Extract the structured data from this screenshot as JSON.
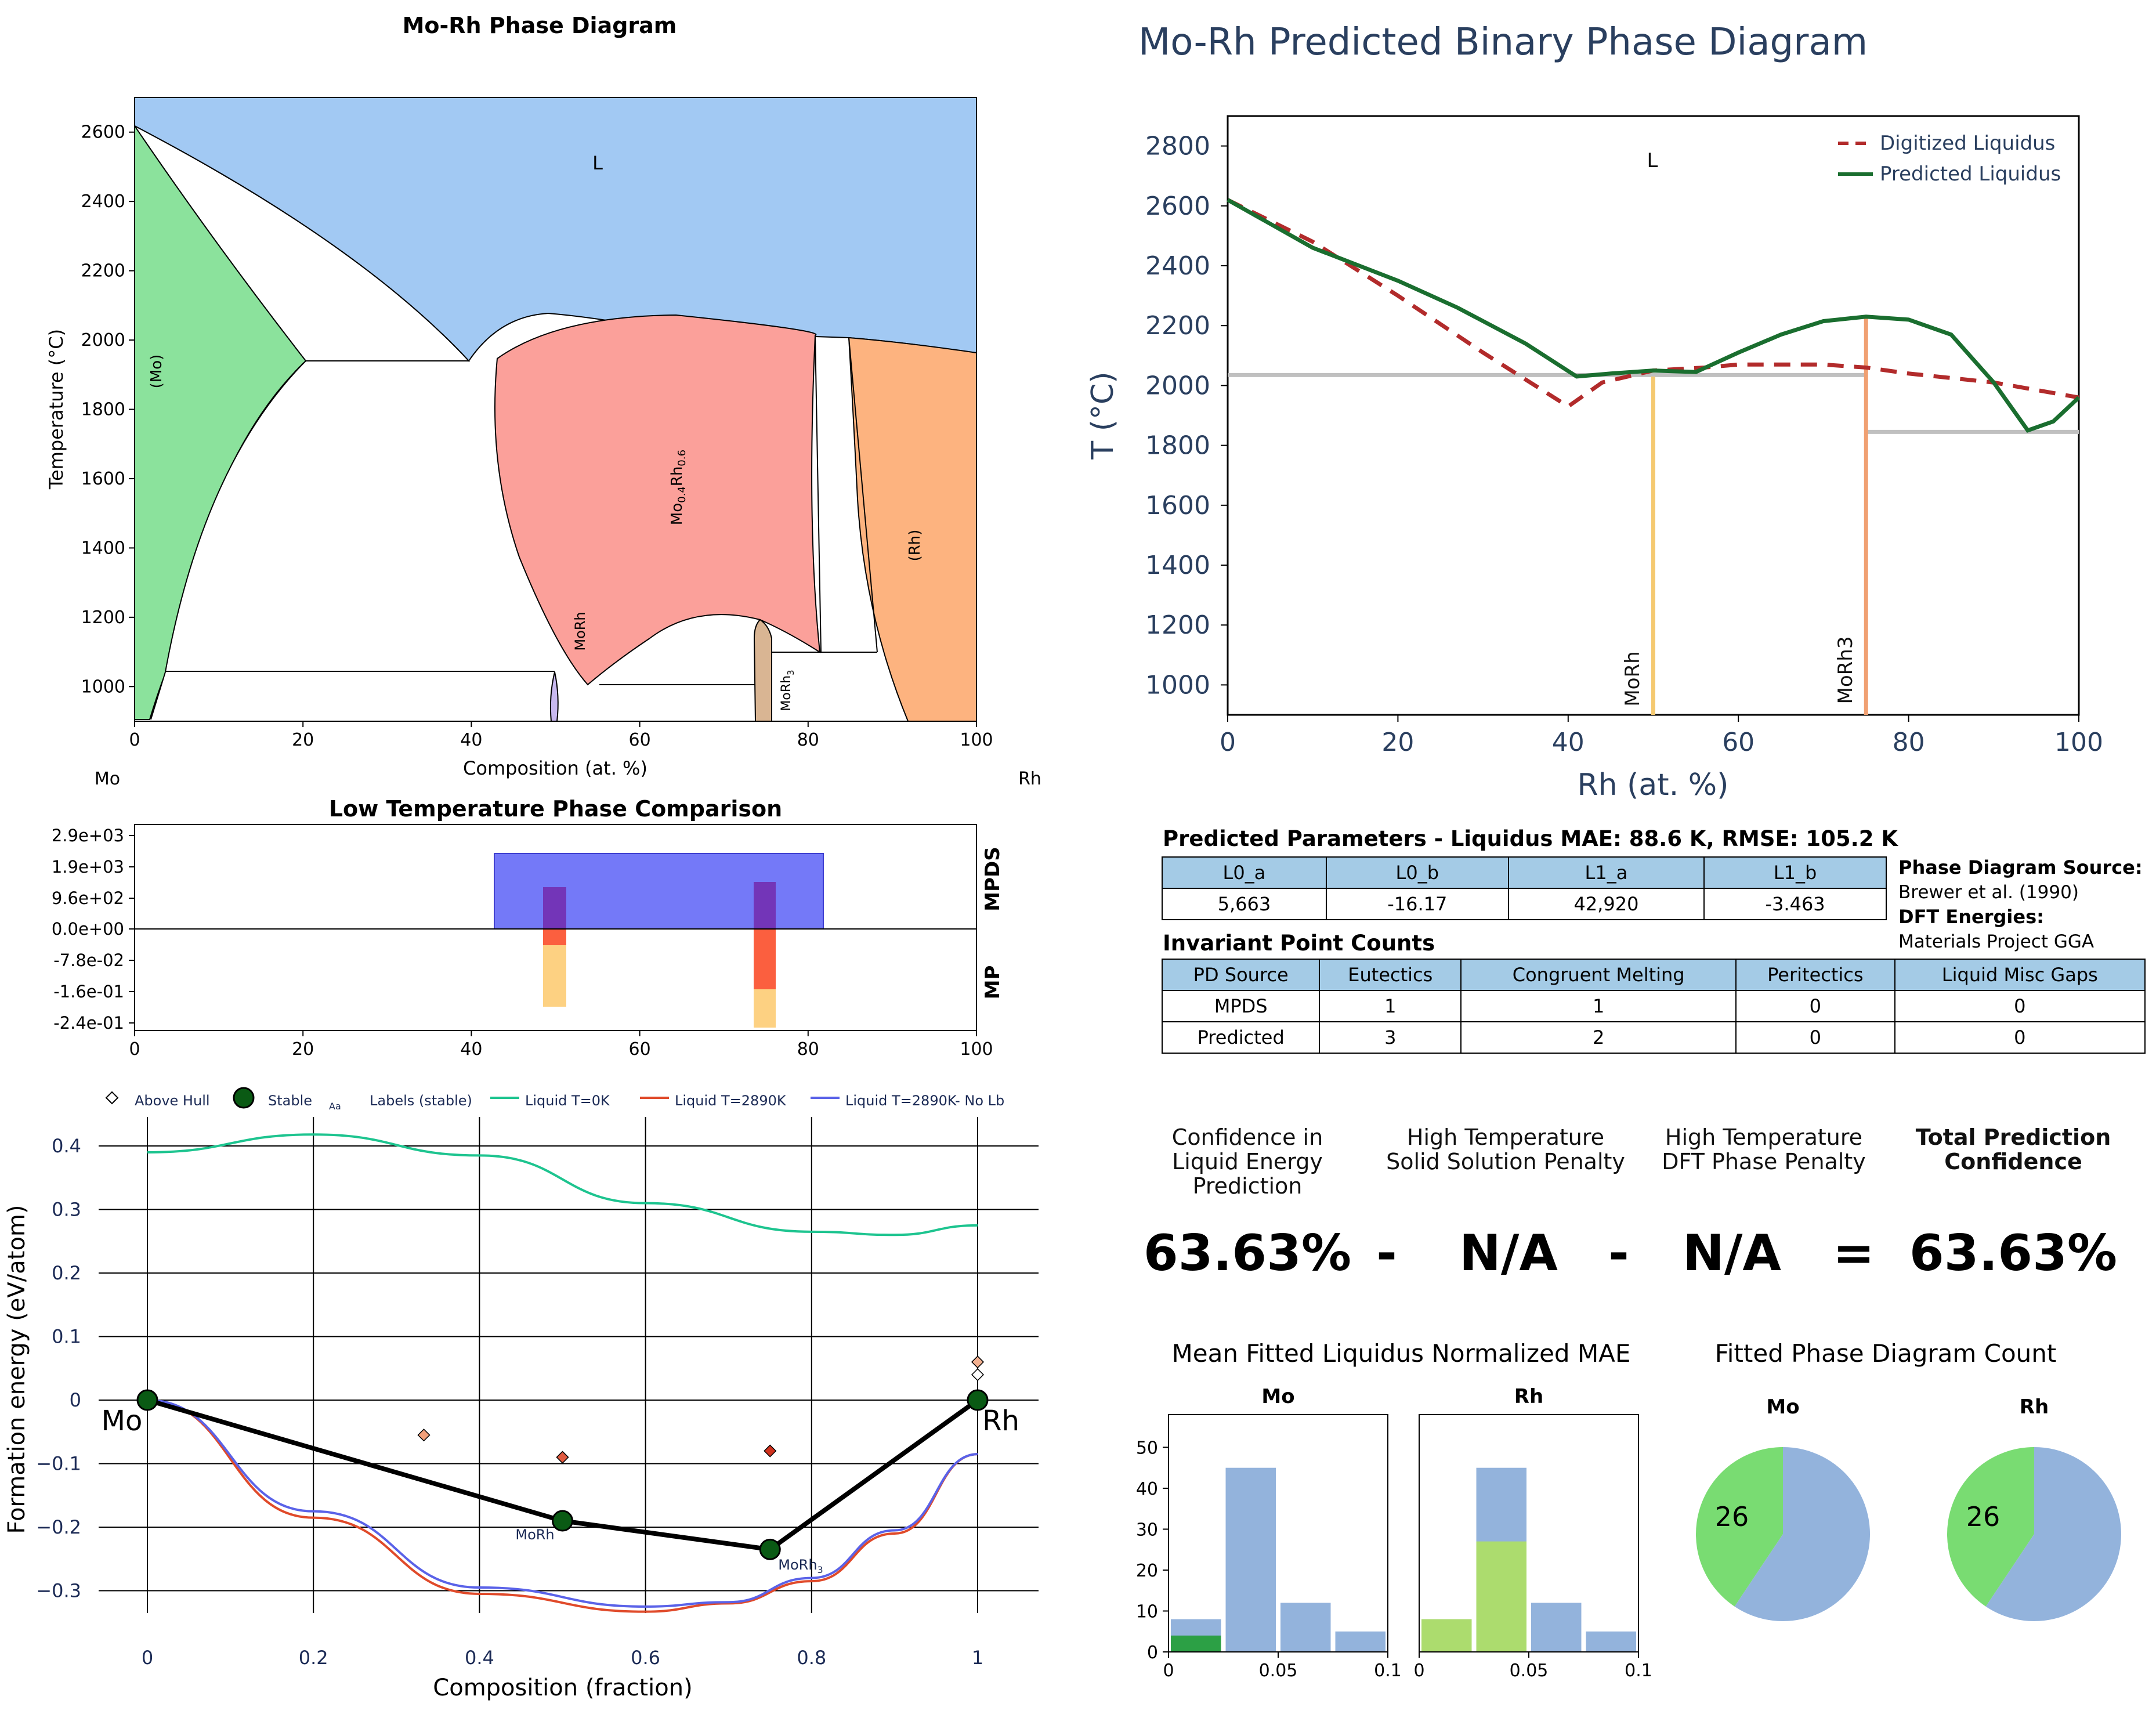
{
  "panel_pd": {
    "title": "Mo-Rh Phase Diagram",
    "xlabel": "Composition (at. %)",
    "ylabel": "Temperature ($^\\circ$C)",
    "ylabel_text": "Temperature (°C)",
    "left_el": "Mo",
    "right_el": "Rh",
    "xticks": [
      "0",
      "20",
      "40",
      "60",
      "80",
      "100"
    ],
    "yticks": [
      "1000",
      "1200",
      "1400",
      "1600",
      "1800",
      "2000",
      "2200",
      "2400",
      "2600"
    ],
    "labels": {
      "L": "L",
      "Mo": "(Mo)",
      "MoRhmid": "Mo0.4Rh0.6",
      "Rh": "(Rh)",
      "MoRh": "MoRh",
      "MoRh3": "MoRh3"
    }
  },
  "panel_pred": {
    "title": "Mo-Rh Predicted Binary Phase Diagram",
    "xlabel": "Rh (at. %)",
    "ylabel": "T (°C)",
    "xticks": [
      "0",
      "20",
      "40",
      "60",
      "80",
      "100"
    ],
    "yticks": [
      "1000",
      "1200",
      "1400",
      "1600",
      "1800",
      "2000",
      "2200",
      "2400",
      "2600",
      "2800"
    ],
    "L": "L",
    "legend": [
      "Digitized Liquidus",
      "Predicted Liquidus"
    ],
    "compound_labels": [
      "MoRh",
      "MoRh3"
    ]
  },
  "panel_cmp": {
    "title": "Low Temperature Phase Comparison",
    "yticks": [
      "2.9e+03",
      "1.9e+03",
      "9.6e+02",
      "0.0e+00",
      "-7.8e-02",
      "-1.6e-01",
      "-2.4e-01"
    ],
    "xticks": [
      "0",
      "20",
      "40",
      "60",
      "80",
      "100"
    ],
    "right_top": "MPDS",
    "right_bottom": "MP"
  },
  "panel_hull": {
    "legend": [
      "Above Hull",
      "Stable",
      "Aa",
      "Labels (stable)",
      "Liquid T=0K",
      "Liquid T=2890K",
      "Liquid T=2890K- No Lb"
    ],
    "xlabel": "Composition (fraction)",
    "ylabel": "Formation energy (eV/atom)",
    "xticks": [
      "0",
      "0.2",
      "0.4",
      "0.6",
      "0.8",
      "1"
    ],
    "yticks": [
      "0.4",
      "0.3",
      "0.2",
      "0.1",
      "0",
      "−0.1",
      "−0.2",
      "−0.3"
    ],
    "end_left": "Mo",
    "end_right": "Rh",
    "pt_labels": [
      "MoRh",
      "MoRh3"
    ]
  },
  "params": {
    "title": "Predicted Parameters - Liquidus MAE: 88.6 K, RMSE: 105.2 K",
    "headers": [
      "L0_a",
      "L0_b",
      "L1_a",
      "L1_b"
    ],
    "values": [
      "5,663",
      "-16.17",
      "42,920",
      "-3.463"
    ],
    "source_h": "Phase Diagram Source:",
    "source_v": "Brewer et al. (1990)",
    "dft_h": "DFT Energies:",
    "dft_v": "Materials Project GGA"
  },
  "invariant": {
    "title": "Invariant Point Counts",
    "headers": [
      "PD Source",
      "Eutectics",
      "Congruent Melting",
      "Peritectics",
      "Liquid Misc Gaps"
    ],
    "rows": [
      [
        "MPDS",
        "1",
        "1",
        "0",
        "0"
      ],
      [
        "Predicted",
        "3",
        "2",
        "0",
        "0"
      ]
    ]
  },
  "confidence": {
    "h1": "Confidence in Liquid Energy Prediction",
    "h2": "High Temperature Solid Solution Penalty",
    "h3": "High Temperature DFT Phase Penalty",
    "h4": "Total Prediction Confidence",
    "v1": "63.63%",
    "op1": "-",
    "v2": "N/A",
    "op2": "-",
    "v3": "N/A",
    "op3": "=",
    "v4": "63.63%"
  },
  "mae": {
    "title": "Mean Fitted Liquidus Normalized MAE",
    "sub_mo": "Mo",
    "sub_rh": "Rh",
    "yticks": [
      "0",
      "10",
      "20",
      "30",
      "40",
      "50"
    ],
    "xticks": [
      "0",
      "0.05",
      "0.1"
    ]
  },
  "count": {
    "title": "Fitted Phase Diagram Count",
    "sub_mo": "Mo",
    "sub_rh": "Rh",
    "mo_label": "26",
    "rh_label": "26"
  },
  "colors": {
    "liquid": "#a2c9f3",
    "mo_phase": "#8be29c",
    "mid_phase": "#fba09a",
    "rh_phase": "#fdb37f",
    "morh": "#c8b8ef",
    "morh3": "#d9b593",
    "pred_green": "#1a6e2f",
    "digit_red": "#b22b2b",
    "hull_green": "#0a5a14",
    "mpds_blue": "#7479f8",
    "pie_blue": "#93b3dc",
    "pie_green": "#79dc72"
  },
  "chart_data": [
    {
      "type": "area",
      "title": "Mo-Rh Phase Diagram",
      "xlabel": "Composition (at. %)",
      "ylabel": "Temperature (°C)",
      "xlim": [
        0,
        100
      ],
      "ylim": [
        900,
        2700
      ],
      "phases": [
        "L",
        "(Mo)",
        "Mo0.4Rh0.6",
        "(Rh)",
        "MoRh",
        "MoRh3"
      ]
    },
    {
      "type": "line",
      "title": "Mo-Rh Predicted Binary Phase Diagram",
      "xlabel": "Rh (at. %)",
      "ylabel": "T (°C)",
      "xlim": [
        0,
        100
      ],
      "ylim": [
        900,
        2900
      ],
      "series": [
        {
          "name": "Digitized Liquidus",
          "x": [
            0,
            10,
            20,
            30,
            40,
            44,
            50,
            56,
            60,
            70,
            75,
            80,
            90,
            100
          ],
          "y": [
            2620,
            2480,
            2300,
            2110,
            1930,
            2010,
            2050,
            2060,
            2070,
            2070,
            2060,
            2040,
            2010,
            1960
          ]
        },
        {
          "name": "Predicted Liquidus",
          "x": [
            0,
            5,
            10,
            20,
            27,
            35,
            41,
            45,
            50,
            55,
            60,
            65,
            70,
            75,
            80,
            85,
            90,
            94,
            97,
            100
          ],
          "y": [
            2620,
            2540,
            2460,
            2350,
            2260,
            2140,
            2030,
            2040,
            2050,
            2045,
            2110,
            2170,
            2215,
            2230,
            2220,
            2170,
            2010,
            1850,
            1880,
            1960
          ]
        },
        {
          "name": "MoRh",
          "x": [
            50
          ],
          "y": [
            2030
          ]
        },
        {
          "name": "MoRh3",
          "x": [
            75
          ],
          "y": [
            2230
          ]
        },
        {
          "name": "",
          "x": [
            0,
            75
          ],
          "y": [
            2035,
            2035
          ]
        },
        {
          "name": "",
          "x": [
            75,
            100
          ],
          "y": [
            1845,
            1845
          ]
        }
      ]
    },
    {
      "type": "bar",
      "title": "Low Temperature Phase Comparison",
      "series": [
        {
          "name": "MPDS",
          "x": [
            [
              43,
              82
            ],
            [
              48.5,
              51.5
            ],
            [
              73.5,
              76.5
            ]
          ],
          "y": [
            2400,
            1300,
            1400
          ]
        },
        {
          "name": "MP",
          "x": [
            50,
            75
          ],
          "y": [
            -0.185,
            -0.235
          ]
        }
      ],
      "xlim": [
        0,
        100
      ]
    },
    {
      "type": "scatter",
      "xlabel": "Composition (fraction)",
      "ylabel": "Formation energy (eV/atom)",
      "xlim": [
        -0.02,
        1.07
      ],
      "ylim": [
        -0.37,
        0.44
      ],
      "series": [
        {
          "name": "Stable",
          "x": [
            0,
            0.5,
            0.75,
            1
          ],
          "y": [
            0,
            -0.19,
            -0.235,
            0
          ]
        },
        {
          "name": "Above Hull",
          "x": [
            0.333,
            0.5,
            0.75,
            1,
            1
          ],
          "y": [
            -0.055,
            -0.09,
            -0.08,
            0.06,
            0.04
          ]
        },
        {
          "name": "Liquid T=0K",
          "x": [
            0,
            0.2,
            0.4,
            0.6,
            0.8,
            0.9,
            1
          ],
          "y": [
            0.39,
            0.418,
            0.385,
            0.31,
            0.265,
            0.26,
            0.275
          ]
        },
        {
          "name": "Liquid T=2890K",
          "x": [
            0,
            0.2,
            0.4,
            0.6,
            0.7,
            0.8,
            0.9,
            1
          ],
          "y": [
            0,
            -0.185,
            -0.305,
            -0.333,
            -0.32,
            -0.285,
            -0.21,
            -0.085
          ]
        },
        {
          "name": "Liquid T=2890K- No Lb",
          "x": [
            0,
            0.2,
            0.4,
            0.6,
            0.7,
            0.8,
            0.9,
            1
          ],
          "y": [
            0,
            -0.175,
            -0.295,
            -0.325,
            -0.318,
            -0.28,
            -0.205,
            -0.085
          ]
        }
      ]
    },
    {
      "type": "bar",
      "title": "Mo",
      "x": [
        0.0125,
        0.0375,
        0.0625,
        0.0875
      ],
      "series": [
        {
          "name": "",
          "values": [
            8,
            45,
            12,
            5
          ]
        },
        {
          "name": "",
          "values": [
            4,
            0,
            0,
            0
          ]
        }
      ],
      "ylim": [
        0,
        58
      ],
      "xlim": [
        0,
        0.1
      ]
    },
    {
      "type": "bar",
      "title": "Rh",
      "x": [
        0.0125,
        0.0375,
        0.0625,
        0.0875
      ],
      "series": [
        {
          "name": "",
          "values": [
            8,
            45,
            12,
            5
          ]
        },
        {
          "name": "",
          "values": [
            8,
            27,
            0,
            0
          ]
        }
      ],
      "ylim": [
        0,
        58
      ],
      "xlim": [
        0,
        0.1
      ]
    },
    {
      "type": "pie",
      "title": "Mo",
      "values": [
        26,
        38
      ]
    },
    {
      "type": "pie",
      "title": "Rh",
      "values": [
        26,
        38
      ]
    }
  ]
}
